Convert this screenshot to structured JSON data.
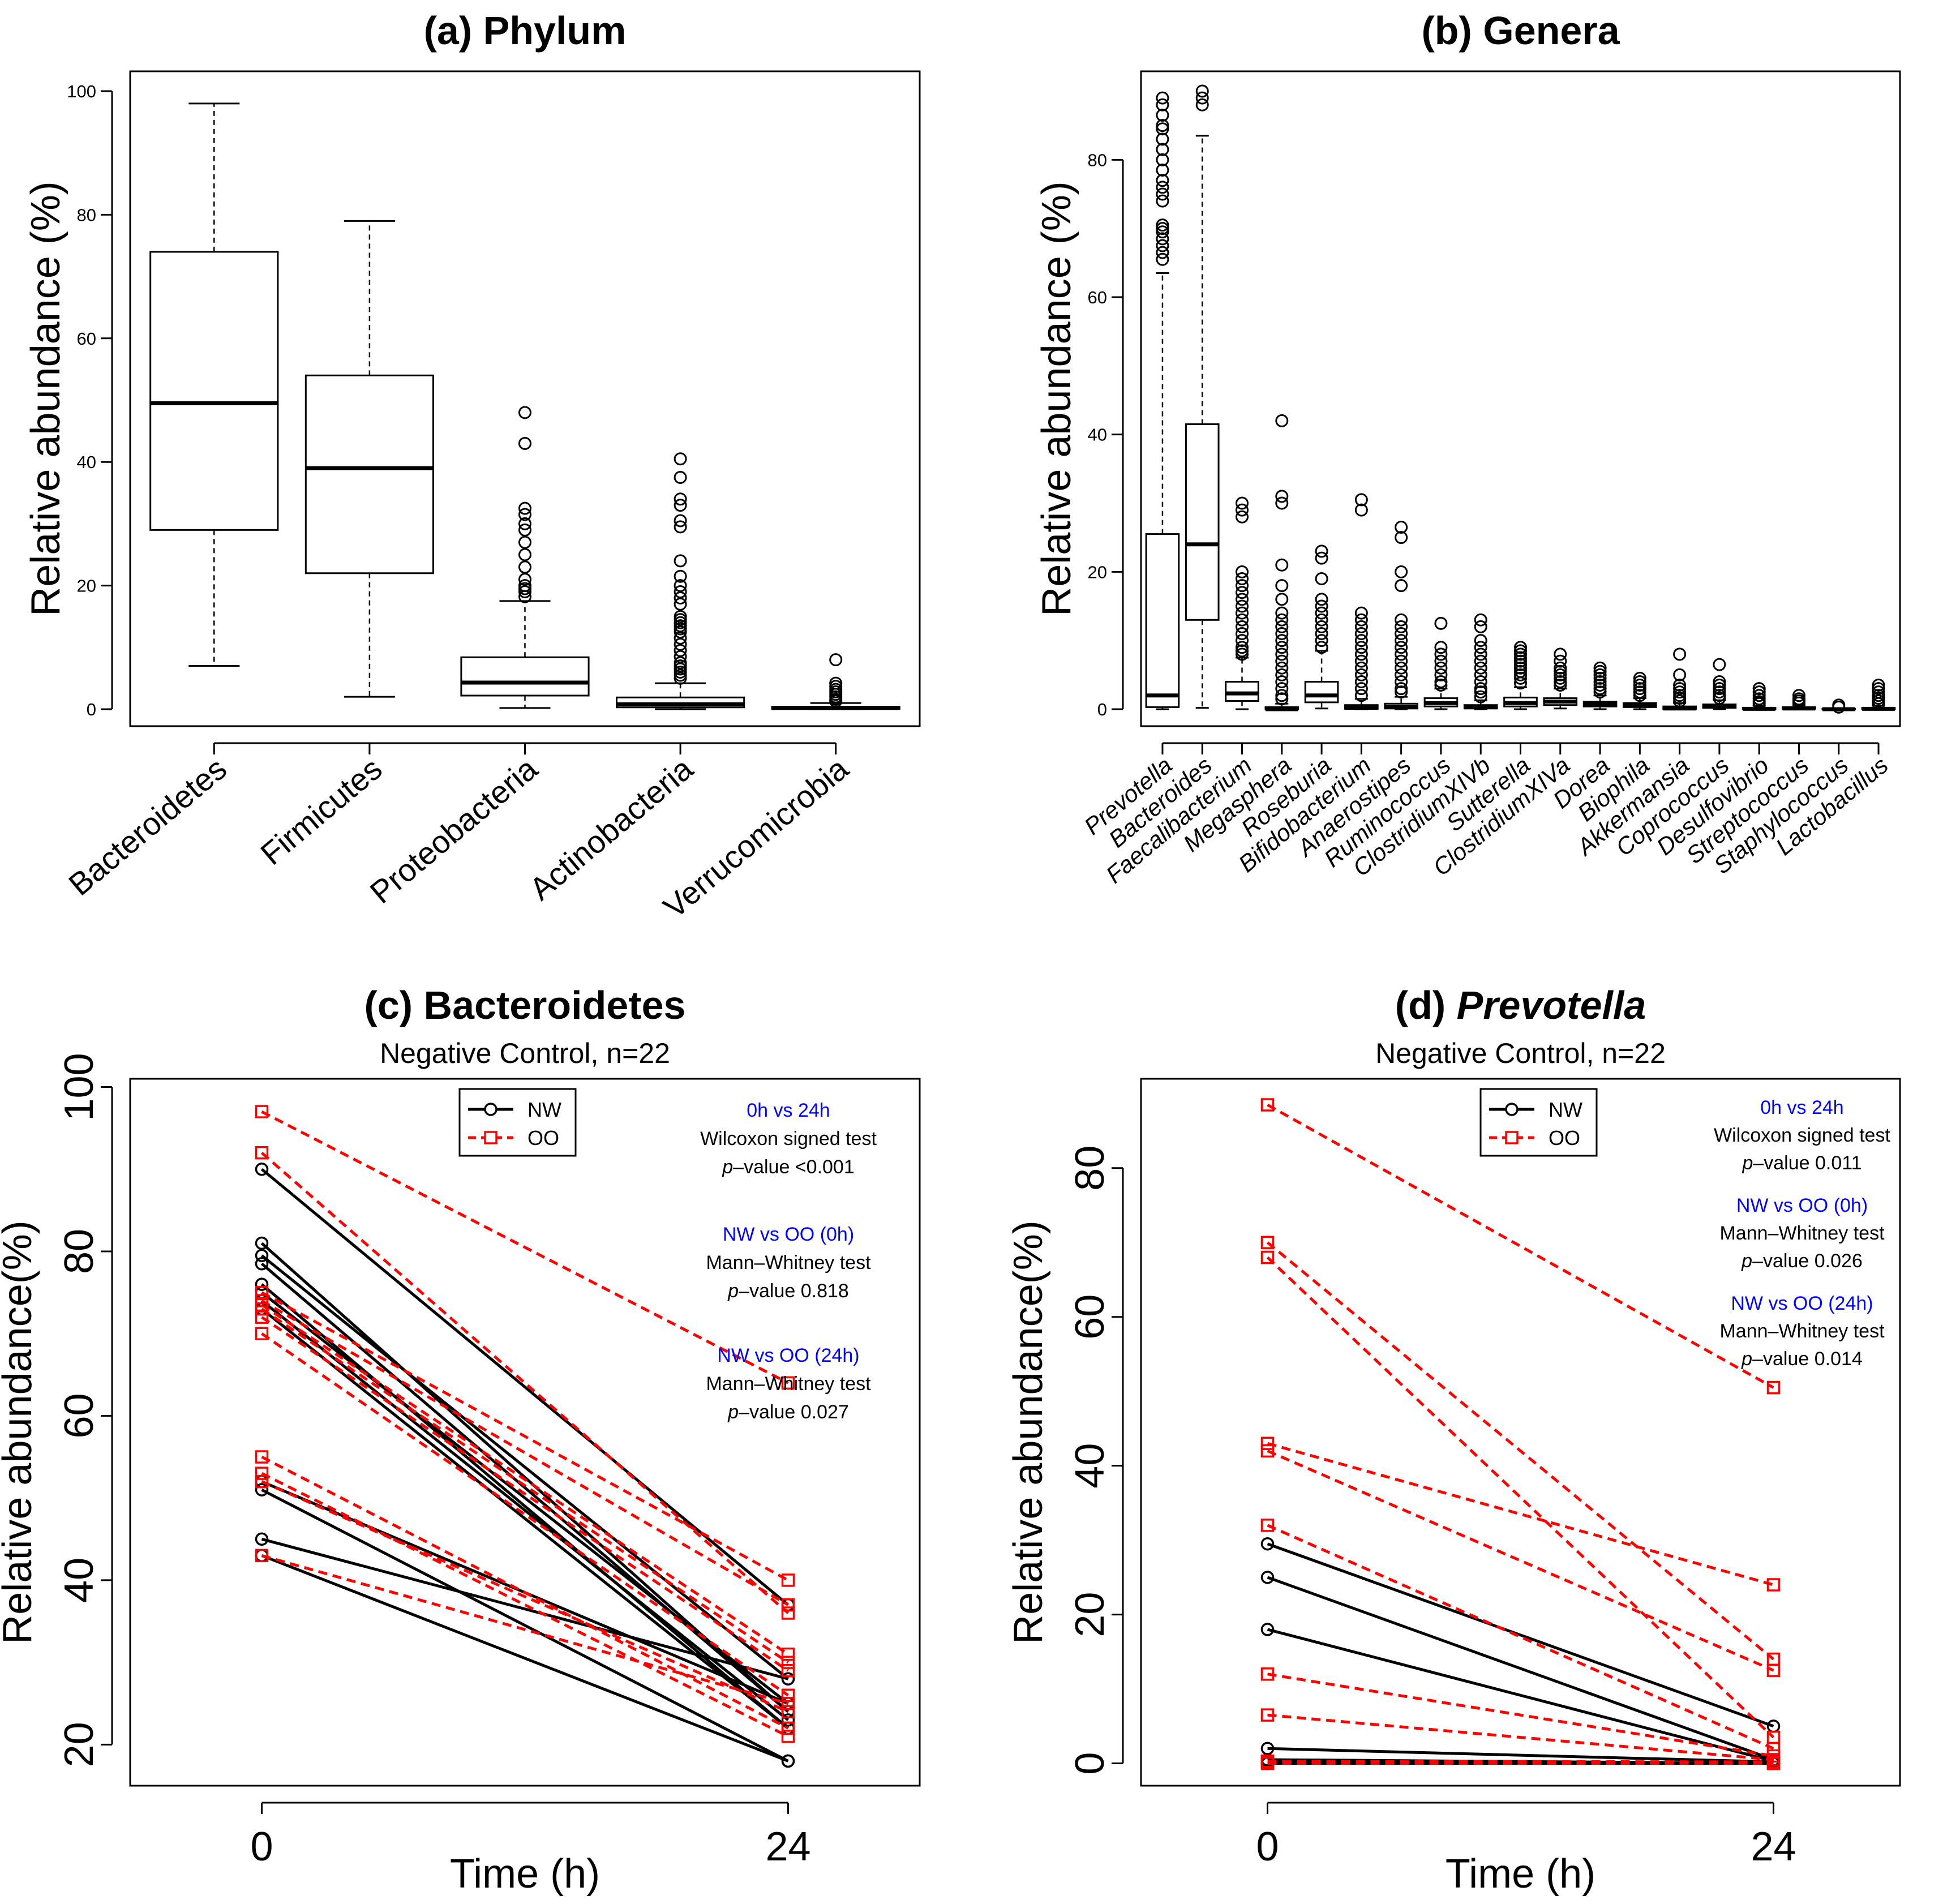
{
  "colors": {
    "nw": "#000000",
    "oo": "#ff0000",
    "annotation_heading": "#0000ff",
    "axis": "#000000"
  },
  "chart_data": [
    {
      "id": "a",
      "type": "box",
      "title": "(a) Phylum",
      "ylabel": "Relative abundance (%)",
      "ylim": [
        0,
        100
      ],
      "yticks": [
        0,
        20,
        40,
        60,
        80,
        100
      ],
      "categories": [
        "Bacteroidetes",
        "Firmicutes",
        "Proteobacteria",
        "Actinobacteria",
        "Verrucomicrobia"
      ],
      "boxes": [
        {
          "category": "Bacteroidetes",
          "whisker_low": 7,
          "q1": 29,
          "median": 49.5,
          "q3": 74,
          "whisker_high": 98,
          "outliers": []
        },
        {
          "category": "Firmicutes",
          "whisker_low": 2,
          "q1": 22,
          "median": 39,
          "q3": 54,
          "whisker_high": 79,
          "outliers": []
        },
        {
          "category": "Proteobacteria",
          "whisker_low": 0.2,
          "q1": 2.2,
          "median": 4.3,
          "q3": 8.4,
          "whisker_high": 17.5,
          "outliers": [
            18.2,
            19,
            19.5,
            20,
            21,
            23,
            25,
            27,
            29,
            30,
            31.5,
            32.5,
            43,
            48
          ]
        },
        {
          "category": "Actinobacteria",
          "whisker_low": 0,
          "q1": 0.3,
          "median": 0.8,
          "q3": 1.9,
          "whisker_high": 4.2,
          "outliers": [
            5,
            5.5,
            6,
            6.5,
            7,
            7.5,
            8.5,
            9.5,
            10.5,
            11.5,
            12.5,
            13,
            13.5,
            14,
            14.5,
            15,
            17,
            18,
            19,
            20,
            21.5,
            24,
            29.5,
            30.5,
            33,
            34,
            37.5,
            40.5
          ]
        },
        {
          "category": "Verrucomicrobia",
          "whisker_low": 0,
          "q1": 0.05,
          "median": 0.2,
          "q3": 0.4,
          "whisker_high": 1,
          "outliers": [
            1.3,
            1.6,
            2,
            2.4,
            2.8,
            3.2,
            3.7,
            4.2,
            8
          ]
        }
      ]
    },
    {
      "id": "b",
      "type": "box",
      "title": "(b) Genera",
      "ylabel": "Relative abundance (%)",
      "ylim": [
        0,
        90
      ],
      "yticks": [
        0,
        20,
        40,
        60,
        80
      ],
      "categories": [
        "Prevotella",
        "Bacteroides",
        "Faecalibacterium",
        "Megasphera",
        "Roseburia",
        "Bifidobacterium",
        "Anaerostipes",
        "Ruminococcus",
        "ClostridiumXIVb",
        "Sutterella",
        "ClostridiumXIVa",
        "Dorea",
        "Biophila",
        "Akkermansia",
        "Coprococcus",
        "Desulfovibrio",
        "Streptococcus",
        "Staphylococcus",
        "Lactobacillus"
      ],
      "boxes": [
        {
          "category": "Prevotella",
          "whisker_low": 0,
          "q1": 0.3,
          "median": 2,
          "q3": 25.5,
          "whisker_high": 63.5,
          "outliers": [
            65.5,
            66.5,
            67.5,
            68.5,
            69.5,
            70,
            70.5,
            74,
            75,
            76,
            77,
            78.5,
            80,
            81.5,
            83,
            84.5,
            85,
            86.5,
            88,
            89
          ]
        },
        {
          "category": "Bacteroides",
          "whisker_low": 0.2,
          "q1": 13,
          "median": 24,
          "q3": 41.5,
          "whisker_high": 83.5,
          "outliers": [
            88,
            89,
            90
          ]
        },
        {
          "category": "Faecalibacterium",
          "whisker_low": 0,
          "q1": 1.2,
          "median": 2.3,
          "q3": 4,
          "whisker_high": 7.5,
          "outliers": [
            8,
            8.5,
            9,
            10,
            11,
            12,
            13,
            14,
            15,
            16,
            17,
            18,
            19,
            20,
            28,
            29,
            30
          ]
        },
        {
          "category": "Megasphera",
          "whisker_low": 0,
          "q1": 0,
          "median": 0,
          "q3": 0.3,
          "whisker_high": 0.8,
          "outliers": [
            1.5,
            2,
            3,
            4,
            5,
            6,
            7,
            8,
            9,
            10,
            11,
            12,
            13,
            14,
            16,
            18,
            21,
            30,
            31,
            42
          ]
        },
        {
          "category": "Roseburia",
          "whisker_low": 0.1,
          "q1": 1,
          "median": 2,
          "q3": 4,
          "whisker_high": 8.5,
          "outliers": [
            9,
            10,
            11,
            12,
            13,
            14,
            15,
            16,
            19,
            22,
            23
          ]
        },
        {
          "category": "Bifidobacterium",
          "whisker_low": 0,
          "q1": 0.05,
          "median": 0.2,
          "q3": 0.6,
          "whisker_high": 1.5,
          "outliers": [
            2,
            3,
            4,
            5,
            6,
            7,
            8,
            9,
            10,
            11,
            12,
            13,
            14,
            29,
            30.5
          ]
        },
        {
          "category": "Anaerostipes",
          "whisker_low": 0,
          "q1": 0.1,
          "median": 0.3,
          "q3": 0.8,
          "whisker_high": 1.8,
          "outliers": [
            2.5,
            3,
            4,
            5,
            6,
            7,
            8,
            9,
            10,
            11,
            12,
            13,
            18,
            20,
            25,
            26.5
          ]
        },
        {
          "category": "Ruminococcus",
          "whisker_low": 0,
          "q1": 0.4,
          "median": 0.9,
          "q3": 1.6,
          "whisker_high": 3,
          "outliers": [
            3.5,
            4,
            5,
            6,
            7,
            8,
            9,
            12.5
          ]
        },
        {
          "category": "ClostridiumXIVb",
          "whisker_low": 0,
          "q1": 0.1,
          "median": 0.3,
          "q3": 0.6,
          "whisker_high": 1.3,
          "outliers": [
            1.8,
            2.5,
            3,
            4,
            5,
            6,
            7,
            8,
            9,
            10,
            12,
            13
          ]
        },
        {
          "category": "Sutterella",
          "whisker_low": 0,
          "q1": 0.4,
          "median": 0.9,
          "q3": 1.7,
          "whisker_high": 3.2,
          "outliers": [
            3.8,
            4.5,
            5,
            5.5,
            6,
            6.5,
            7,
            7.5,
            8,
            8.5,
            9
          ]
        },
        {
          "category": "ClostridiumXIVa",
          "whisker_low": 0.1,
          "q1": 0.6,
          "median": 1.1,
          "q3": 1.6,
          "whisker_high": 3,
          "outliers": [
            3.5,
            4,
            4.5,
            5,
            5.5,
            6,
            7,
            8
          ]
        },
        {
          "category": "Dorea",
          "whisker_low": 0,
          "q1": 0.4,
          "median": 0.7,
          "q3": 1.1,
          "whisker_high": 2,
          "outliers": [
            2.5,
            3,
            3.5,
            4,
            4.5,
            5,
            5.5,
            6
          ]
        },
        {
          "category": "Biophila",
          "whisker_low": 0,
          "q1": 0.3,
          "median": 0.6,
          "q3": 0.9,
          "whisker_high": 1.6,
          "outliers": [
            2,
            2.5,
            3,
            3.5,
            4,
            4.5
          ]
        },
        {
          "category": "Akkermansia",
          "whisker_low": 0,
          "q1": 0,
          "median": 0.1,
          "q3": 0.4,
          "whisker_high": 0.9,
          "outliers": [
            1.2,
            1.6,
            2,
            2.5,
            3,
            3.5,
            5,
            8
          ]
        },
        {
          "category": "Coprococcus",
          "whisker_low": 0,
          "q1": 0.2,
          "median": 0.4,
          "q3": 0.7,
          "whisker_high": 1.3,
          "outliers": [
            1.6,
            2,
            2.5,
            3,
            3.5,
            4,
            6.5
          ]
        },
        {
          "category": "Desulfovibrio",
          "whisker_low": 0,
          "q1": 0,
          "median": 0.05,
          "q3": 0.2,
          "whisker_high": 0.5,
          "outliers": [
            0.8,
            1.1,
            1.5,
            2,
            2.5,
            3
          ]
        },
        {
          "category": "Streptococcus",
          "whisker_low": 0,
          "q1": 0.05,
          "median": 0.1,
          "q3": 0.3,
          "whisker_high": 0.6,
          "outliers": [
            0.9,
            1.2,
            1.5,
            2
          ]
        },
        {
          "category": "Staphylococcus",
          "whisker_low": 0,
          "q1": 0,
          "median": 0,
          "q3": 0.05,
          "whisker_high": 0.1,
          "outliers": [
            0.3,
            0.6
          ]
        },
        {
          "category": "Lactobacillus",
          "whisker_low": 0,
          "q1": 0,
          "median": 0.05,
          "q3": 0.2,
          "whisker_high": 0.5,
          "outliers": [
            0.8,
            1.2,
            1.6,
            2,
            2.5,
            3,
            3.5
          ]
        }
      ]
    },
    {
      "id": "c",
      "type": "line",
      "title": "(c) Bacteroidetes",
      "subtitle": "Negative Control, n=22",
      "xlabel": "Time (h)",
      "ylabel": "Relative abundance(%)",
      "xlim": [
        -6,
        30
      ],
      "ylim": [
        15,
        101
      ],
      "xticks": [
        0,
        24
      ],
      "yticks": [
        20,
        40,
        60,
        80,
        100
      ],
      "legend": {
        "position": "top-center",
        "entries": [
          "NW",
          "OO"
        ]
      },
      "series": [
        {
          "name": "NW",
          "pairs": [
            [
              90,
              37
            ],
            [
              81,
              24
            ],
            [
              79.5,
              28
            ],
            [
              78.5,
              24
            ],
            [
              76,
              22
            ],
            [
              75,
              25
            ],
            [
              74,
              23
            ],
            [
              73,
              22
            ],
            [
              52,
              25
            ],
            [
              51,
              18
            ],
            [
              45,
              28
            ],
            [
              43,
              18
            ]
          ]
        },
        {
          "name": "OO",
          "pairs": [
            [
              97,
              64
            ],
            [
              92,
              36
            ],
            [
              75,
              40
            ],
            [
              74,
              37
            ],
            [
              73.5,
              31
            ],
            [
              73,
              30
            ],
            [
              72,
              29
            ],
            [
              70,
              26
            ],
            [
              55,
              22
            ],
            [
              53,
              21
            ],
            [
              52,
              24
            ],
            [
              43,
              25
            ]
          ]
        }
      ],
      "annotations": [
        {
          "heading": "0h vs 24h",
          "test": "Wilcoxon signed test",
          "p_label": "p",
          "p_text": "–value <0.001"
        },
        {
          "heading": "NW vs OO (0h)",
          "test": "Mann–Whitney test",
          "p_label": "p",
          "p_text": "–value 0.818"
        },
        {
          "heading": "NW vs OO (24h)",
          "test": "Mann–Whitney test",
          "p_label": "p",
          "p_text": "–value 0.027"
        }
      ]
    },
    {
      "id": "d",
      "type": "line",
      "title_prefix": "(d) ",
      "title_italic": "Prevotella",
      "subtitle": "Negative Control, n=22",
      "xlabel": "Time (h)",
      "ylabel": "Relative abundance(%)",
      "xlim": [
        -6,
        30
      ],
      "ylim": [
        -3,
        92
      ],
      "xticks": [
        0,
        24
      ],
      "yticks": [
        0,
        20,
        40,
        60,
        80
      ],
      "legend": {
        "position": "top-center",
        "entries": [
          "NW",
          "OO"
        ]
      },
      "series": [
        {
          "name": "NW",
          "pairs": [
            [
              29.5,
              5
            ],
            [
              25,
              0.5
            ],
            [
              18,
              0.3
            ],
            [
              2,
              0.2
            ],
            [
              0.5,
              0
            ],
            [
              0.3,
              0
            ],
            [
              0.2,
              0
            ],
            [
              0.1,
              0
            ],
            [
              0,
              0
            ],
            [
              0,
              0
            ],
            [
              0,
              0
            ],
            [
              0,
              0
            ]
          ]
        },
        {
          "name": "OO",
          "pairs": [
            [
              88.5,
              50.5
            ],
            [
              70,
              14
            ],
            [
              68,
              3.5
            ],
            [
              43,
              24
            ],
            [
              42,
              12.5
            ],
            [
              32,
              2
            ],
            [
              12,
              1
            ],
            [
              6.5,
              0.5
            ],
            [
              0.3,
              0.2
            ],
            [
              0.2,
              0.1
            ],
            [
              0.1,
              0
            ],
            [
              0,
              0
            ]
          ]
        }
      ],
      "annotations": [
        {
          "heading": "0h vs 24h",
          "test": "Wilcoxon signed test",
          "p_label": "p",
          "p_text": "–value 0.011"
        },
        {
          "heading": "NW vs OO (0h)",
          "test": "Mann–Whitney test",
          "p_label": "p",
          "p_text": "–value 0.026"
        },
        {
          "heading": "NW vs OO (24h)",
          "test": "Mann–Whitney test",
          "p_label": "p",
          "p_text": "–value 0.014"
        }
      ]
    }
  ]
}
